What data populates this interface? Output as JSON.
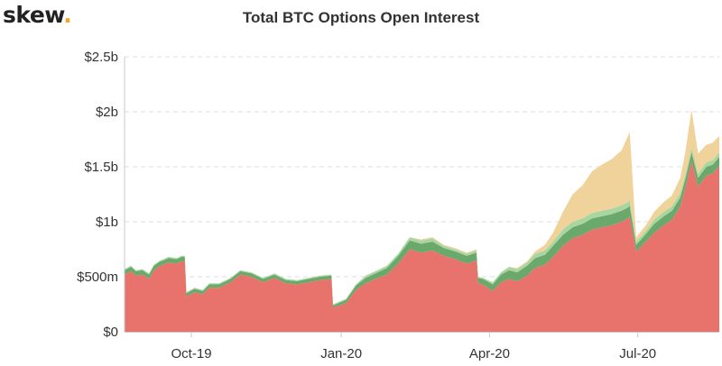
{
  "brand": {
    "name": "skew",
    "dot": "."
  },
  "chart_data": {
    "type": "area",
    "stacked": true,
    "title": "Total BTC Options Open Interest",
    "xlabel": "",
    "ylabel": "",
    "ylim": [
      0,
      2.5
    ],
    "yticks": [
      {
        "value": 0,
        "label": "$0"
      },
      {
        "value": 0.5,
        "label": "$500m"
      },
      {
        "value": 1,
        "label": "$1b"
      },
      {
        "value": 1.5,
        "label": "$1.5b"
      },
      {
        "value": 2,
        "label": "$2b"
      },
      {
        "value": 2.5,
        "label": "$2.5b"
      }
    ],
    "xlim": [
      "2019-08-21",
      "2020-08-20"
    ],
    "xticks": [
      {
        "date": "2019-10-01",
        "label": "Oct-19"
      },
      {
        "date": "2020-01-01",
        "label": "Jan-20"
      },
      {
        "date": "2020-04-01",
        "label": "Apr-20"
      },
      {
        "date": "2020-07-01",
        "label": "Jul-20"
      }
    ],
    "grid": {
      "horizontal": true,
      "dashed": true
    },
    "legend": "none",
    "colors": {
      "base": "#e8736c",
      "mid": "#6aa86b",
      "top": "#a9d6a0",
      "peak": "#f0d29b"
    },
    "x": [
      "2019-08-21",
      "2019-08-25",
      "2019-08-28",
      "2019-09-01",
      "2019-09-05",
      "2019-09-08",
      "2019-09-12",
      "2019-09-14",
      "2019-09-17",
      "2019-09-22",
      "2019-09-25",
      "2019-09-27",
      "2019-09-28",
      "2019-10-03",
      "2019-10-08",
      "2019-10-12",
      "2019-10-18",
      "2019-10-25",
      "2019-10-31",
      "2019-11-07",
      "2019-11-14",
      "2019-11-21",
      "2019-11-28",
      "2019-12-05",
      "2019-12-12",
      "2019-12-19",
      "2019-12-26",
      "2019-12-27",
      "2020-01-04",
      "2020-01-10",
      "2020-01-16",
      "2020-01-22",
      "2020-01-29",
      "2020-02-05",
      "2020-02-12",
      "2020-02-19",
      "2020-02-26",
      "2020-03-04",
      "2020-03-11",
      "2020-03-18",
      "2020-03-24",
      "2020-03-25",
      "2020-03-28",
      "2020-04-03",
      "2020-04-08",
      "2020-04-13",
      "2020-04-18",
      "2020-04-24",
      "2020-04-29",
      "2020-05-05",
      "2020-05-10",
      "2020-05-16",
      "2020-05-22",
      "2020-05-28",
      "2020-06-03",
      "2020-06-09",
      "2020-06-15",
      "2020-06-21",
      "2020-06-25",
      "2020-06-26",
      "2020-06-30",
      "2020-07-06",
      "2020-07-11",
      "2020-07-17",
      "2020-07-22",
      "2020-07-27",
      "2020-07-30",
      "2020-08-03",
      "2020-08-07",
      "2020-08-12",
      "2020-08-16",
      "2020-08-20"
    ],
    "series": [
      {
        "values": [
          0.52,
          0.55,
          0.51,
          0.52,
          0.48,
          0.56,
          0.6,
          0.61,
          0.63,
          0.62,
          0.64,
          0.64,
          0.32,
          0.36,
          0.34,
          0.4,
          0.4,
          0.45,
          0.52,
          0.5,
          0.45,
          0.49,
          0.44,
          0.43,
          0.45,
          0.47,
          0.48,
          0.22,
          0.26,
          0.38,
          0.44,
          0.48,
          0.52,
          0.62,
          0.75,
          0.72,
          0.74,
          0.69,
          0.66,
          0.62,
          0.65,
          0.44,
          0.43,
          0.37,
          0.45,
          0.48,
          0.46,
          0.51,
          0.58,
          0.61,
          0.68,
          0.78,
          0.85,
          0.88,
          0.93,
          0.95,
          0.97,
          1.0,
          1.03,
          1.05,
          0.73,
          0.82,
          0.9,
          0.97,
          1.02,
          1.14,
          1.3,
          1.55,
          1.32,
          1.42,
          1.44,
          1.51
        ]
      },
      {
        "values": [
          0.04,
          0.04,
          0.04,
          0.04,
          0.04,
          0.04,
          0.04,
          0.04,
          0.04,
          0.04,
          0.04,
          0.04,
          0.03,
          0.03,
          0.03,
          0.03,
          0.03,
          0.03,
          0.03,
          0.03,
          0.03,
          0.03,
          0.03,
          0.03,
          0.03,
          0.03,
          0.03,
          0.02,
          0.03,
          0.04,
          0.05,
          0.05,
          0.06,
          0.07,
          0.08,
          0.08,
          0.08,
          0.07,
          0.07,
          0.07,
          0.07,
          0.05,
          0.05,
          0.06,
          0.07,
          0.08,
          0.08,
          0.09,
          0.09,
          0.09,
          0.1,
          0.1,
          0.1,
          0.1,
          0.1,
          0.1,
          0.1,
          0.1,
          0.1,
          0.1,
          0.06,
          0.07,
          0.08,
          0.08,
          0.08,
          0.08,
          0.08,
          0.08,
          0.08,
          0.08,
          0.08,
          0.08
        ]
      },
      {
        "values": [
          0.01,
          0.01,
          0.01,
          0.01,
          0.01,
          0.01,
          0.01,
          0.01,
          0.01,
          0.01,
          0.01,
          0.01,
          0.01,
          0.01,
          0.01,
          0.01,
          0.01,
          0.01,
          0.01,
          0.01,
          0.01,
          0.01,
          0.01,
          0.01,
          0.01,
          0.01,
          0.01,
          0.01,
          0.01,
          0.01,
          0.02,
          0.02,
          0.02,
          0.02,
          0.03,
          0.03,
          0.03,
          0.02,
          0.02,
          0.02,
          0.02,
          0.01,
          0.01,
          0.02,
          0.02,
          0.03,
          0.03,
          0.03,
          0.04,
          0.04,
          0.04,
          0.05,
          0.05,
          0.05,
          0.05,
          0.05,
          0.05,
          0.05,
          0.05,
          0.05,
          0.03,
          0.03,
          0.04,
          0.04,
          0.04,
          0.04,
          0.04,
          0.04,
          0.04,
          0.04,
          0.04,
          0.04
        ]
      },
      {
        "values": [
          0,
          0,
          0,
          0,
          0,
          0,
          0,
          0,
          0,
          0,
          0,
          0,
          0,
          0,
          0,
          0,
          0,
          0,
          0,
          0,
          0,
          0,
          0,
          0,
          0,
          0,
          0,
          0,
          0,
          0,
          0,
          0,
          0,
          0,
          0,
          0.01,
          0.01,
          0.01,
          0.01,
          0.01,
          0.01,
          0,
          0,
          0,
          0,
          0,
          0.01,
          0.01,
          0.02,
          0.05,
          0.08,
          0.16,
          0.25,
          0.3,
          0.38,
          0.42,
          0.45,
          0.5,
          0.6,
          0.62,
          0.04,
          0.05,
          0.07,
          0.09,
          0.1,
          0.14,
          0.2,
          0.35,
          0.18,
          0.16,
          0.16,
          0.15
        ]
      }
    ]
  }
}
